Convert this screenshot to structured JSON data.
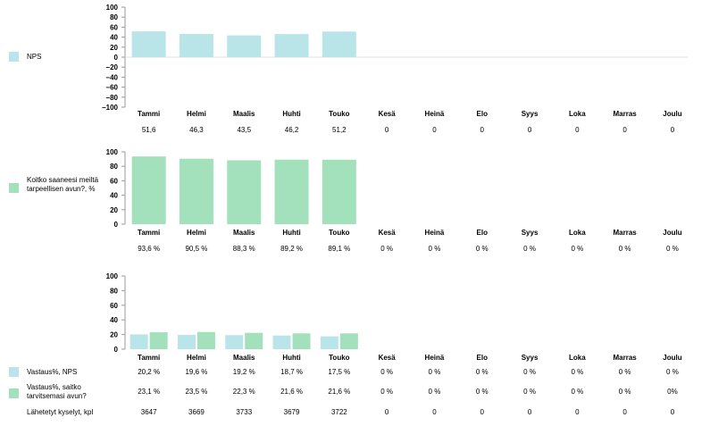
{
  "colors": {
    "nps": "#b9e5e8",
    "help": "#a2e1bb",
    "axis": "#9a9a9a"
  },
  "chart_data": [
    {
      "type": "bar",
      "id": "nps",
      "categories": [
        "Tammi",
        "Helmi",
        "Maalis",
        "Huhti",
        "Touko",
        "Kesä",
        "Heinä",
        "Elo",
        "Syys",
        "Loka",
        "Marras",
        "Joulu"
      ],
      "series": [
        {
          "name": "NPS",
          "values": [
            51.6,
            46.3,
            43.5,
            46.2,
            51.2,
            0,
            0,
            0,
            0,
            0,
            0,
            0
          ]
        }
      ],
      "value_labels": [
        "51,6",
        "46,3",
        "43,5",
        "46,2",
        "51,2",
        "0",
        "0",
        "0",
        "0",
        "0",
        "0",
        "0"
      ],
      "ylim": [
        -100,
        100
      ],
      "yticks": [
        "100",
        "80",
        "60",
        "40",
        "20",
        "0",
        "−20",
        "−40",
        "−60",
        "−80",
        "−100"
      ],
      "legend": "left"
    },
    {
      "type": "bar",
      "id": "help",
      "categories": [
        "Tammi",
        "Helmi",
        "Maalis",
        "Huhti",
        "Touko",
        "Kesä",
        "Heinä",
        "Elo",
        "Syys",
        "Loka",
        "Marras",
        "Joulu"
      ],
      "series": [
        {
          "name": "Koitko saaneesi meiltä tarpeellisen avun?, %",
          "values": [
            93.6,
            90.5,
            88.3,
            89.2,
            89.1,
            0,
            0,
            0,
            0,
            0,
            0,
            0
          ]
        }
      ],
      "value_labels": [
        "93,6 %",
        "90,5 %",
        "88,3 %",
        "89,2 %",
        "89,1 %",
        "0 %",
        "0 %",
        "0 %",
        "0 %",
        "0 %",
        "0 %",
        "0 %"
      ],
      "ylim": [
        0,
        100
      ],
      "yticks": [
        "100",
        "80",
        "60",
        "40",
        "20",
        "0"
      ],
      "legend": "left"
    },
    {
      "type": "bar",
      "id": "response",
      "categories": [
        "Tammi",
        "Helmi",
        "Maalis",
        "Huhti",
        "Touko",
        "Kesä",
        "Heinä",
        "Elo",
        "Syys",
        "Loka",
        "Marras",
        "Joulu"
      ],
      "series": [
        {
          "name": "Vastaus%, NPS",
          "values": [
            20.2,
            19.6,
            19.2,
            18.7,
            17.5,
            0,
            0,
            0,
            0,
            0,
            0,
            0
          ],
          "value_labels": [
            "20,2 %",
            "19,6 %",
            "19,2 %",
            "18,7 %",
            "17,5 %",
            "0 %",
            "0 %",
            "0 %",
            "0 %",
            "0 %",
            "0 %",
            "0 %"
          ]
        },
        {
          "name": "Vastaus%, saitko tarvitsemasi avun?",
          "values": [
            23.1,
            23.5,
            22.3,
            21.6,
            21.6,
            0,
            0,
            0,
            0,
            0,
            0,
            0
          ],
          "value_labels": [
            "23,1 %",
            "23,5 %",
            "22,3 %",
            "21,6 %",
            "21,6 %",
            "0 %",
            "0 %",
            "0 %",
            "0 %",
            "0 %",
            "0 %",
            "0%"
          ]
        }
      ],
      "extra_row": {
        "name": "Lähetetyt kyselyt, kpl",
        "values": [
          "3647",
          "3669",
          "3733",
          "3679",
          "3722",
          "0",
          "0",
          "0",
          "0",
          "0",
          "0",
          "0"
        ]
      },
      "ylim": [
        0,
        100
      ],
      "yticks": [
        "100",
        "80",
        "60",
        "40",
        "20",
        "0"
      ],
      "legend": "left"
    }
  ]
}
